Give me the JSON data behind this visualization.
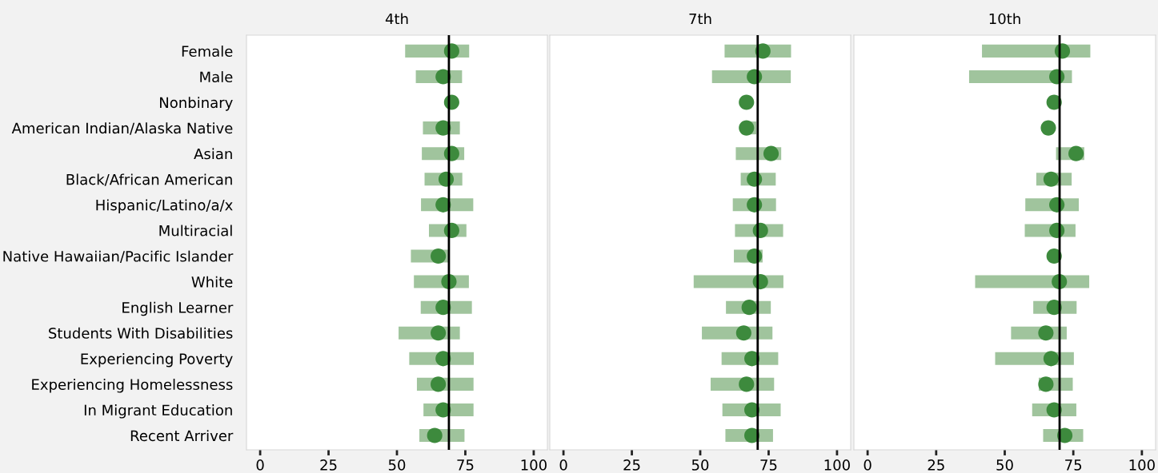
{
  "chart_data": [
    {
      "type": "bar",
      "orientation": "horizontal",
      "title": "4th",
      "categories": [
        "Female",
        "Male",
        "Nonbinary",
        "American Indian/Alaska Native",
        "Asian",
        "Black/African American",
        "Hispanic/Latino/a/x",
        "Multiracial",
        "Native Hawaiian/Pacific Islander",
        "White",
        "English Learner",
        "Students With Disabilities",
        "Experiencing Poverty",
        "Experiencing Homelessness",
        "In Migrant Education",
        "Recent Arriver"
      ],
      "xlim": [
        -5,
        105
      ],
      "xticks": [
        0,
        25,
        50,
        75,
        100
      ],
      "grid": false,
      "marker": "circle",
      "series": [
        {
          "color": "#a0c49d",
          "base": [
            53.0,
            56.9,
            null,
            59.5,
            59.1,
            60.1,
            58.8,
            61.7,
            55.1,
            56.2,
            58.7,
            50.6,
            54.5,
            57.3,
            59.7,
            58.2
          ],
          "values": [
            23.4,
            16.9,
            null,
            13.5,
            15.5,
            13.8,
            19.1,
            13.7,
            13.9,
            20.1,
            18.7,
            22.4,
            23.6,
            20.7,
            18.3,
            16.5
          ]
        },
        {
          "type": "scatter",
          "color": "#3d8a3d",
          "values": [
            70.0,
            66.9,
            70.0,
            66.9,
            70.0,
            68.0,
            66.9,
            70.0,
            65.1,
            69.0,
            66.9,
            65.1,
            66.9,
            65.1,
            66.9,
            63.8
          ]
        }
      ],
      "ref_lines": [
        {
          "axis": "x",
          "value": 69.0,
          "label": null,
          "color": "#000000"
        }
      ]
    },
    {
      "type": "bar",
      "orientation": "horizontal",
      "title": "7th",
      "categories": [
        null,
        null,
        null,
        null,
        null,
        null,
        null,
        null,
        null,
        null,
        null,
        null,
        null,
        null,
        null,
        null
      ],
      "xlim": [
        -5,
        105
      ],
      "xticks": [
        0,
        25,
        50,
        75,
        100
      ],
      "grid": false,
      "marker": "circle",
      "tick_labels": "x",
      "series": [
        {
          "color": "#a0c49d",
          "base": [
            58.9,
            54.3,
            null,
            67.0,
            63.0,
            64.8,
            61.9,
            62.7,
            62.3,
            47.6,
            59.4,
            50.6,
            57.8,
            53.8,
            58.1,
            59.2
          ],
          "values": [
            24.3,
            28.8,
            null,
            3.5,
            16.6,
            12.8,
            15.8,
            17.6,
            10.5,
            32.8,
            16.4,
            25.8,
            20.7,
            23.2,
            21.3,
            17.4
          ]
        },
        {
          "type": "scatter",
          "color": "#3d8a3d",
          "values": [
            72.9,
            69.8,
            66.9,
            66.9,
            75.9,
            69.8,
            69.8,
            72.0,
            69.8,
            72.0,
            67.9,
            65.9,
            68.9,
            66.9,
            68.9,
            68.9
          ]
        }
      ],
      "ref_lines": [
        {
          "axis": "x",
          "value": 71.0,
          "label": null,
          "color": "#000000"
        }
      ]
    },
    {
      "type": "bar",
      "orientation": "horizontal",
      "title": "10th",
      "categories": [
        null,
        null,
        null,
        null,
        null,
        null,
        null,
        null,
        null,
        null,
        null,
        null,
        null,
        null,
        null,
        null
      ],
      "xlim": [
        -5,
        105
      ],
      "xticks": [
        0,
        25,
        50,
        75,
        100
      ],
      "grid": false,
      "marker": "circle",
      "tick_labels": "x",
      "series": [
        {
          "color": "#a0c49d",
          "base": [
            41.7,
            37.0,
            null,
            null,
            68.7,
            61.5,
            57.5,
            57.3,
            null,
            39.2,
            60.4,
            52.3,
            46.5,
            62.4,
            60.0,
            64.0
          ],
          "values": [
            39.5,
            37.5,
            null,
            null,
            10.3,
            12.9,
            19.5,
            18.5,
            null,
            41.6,
            15.8,
            20.3,
            28.7,
            12.4,
            16.1,
            14.6
          ]
        },
        {
          "type": "scatter",
          "color": "#3d8a3d",
          "values": [
            71.0,
            69.0,
            68.0,
            65.9,
            76.0,
            66.9,
            69.0,
            69.0,
            68.0,
            69.9,
            68.0,
            65.0,
            66.9,
            65.0,
            68.0,
            71.9
          ]
        }
      ],
      "ref_lines": [
        {
          "axis": "x",
          "value": 70.0,
          "label": null,
          "color": "#000000"
        }
      ]
    }
  ]
}
